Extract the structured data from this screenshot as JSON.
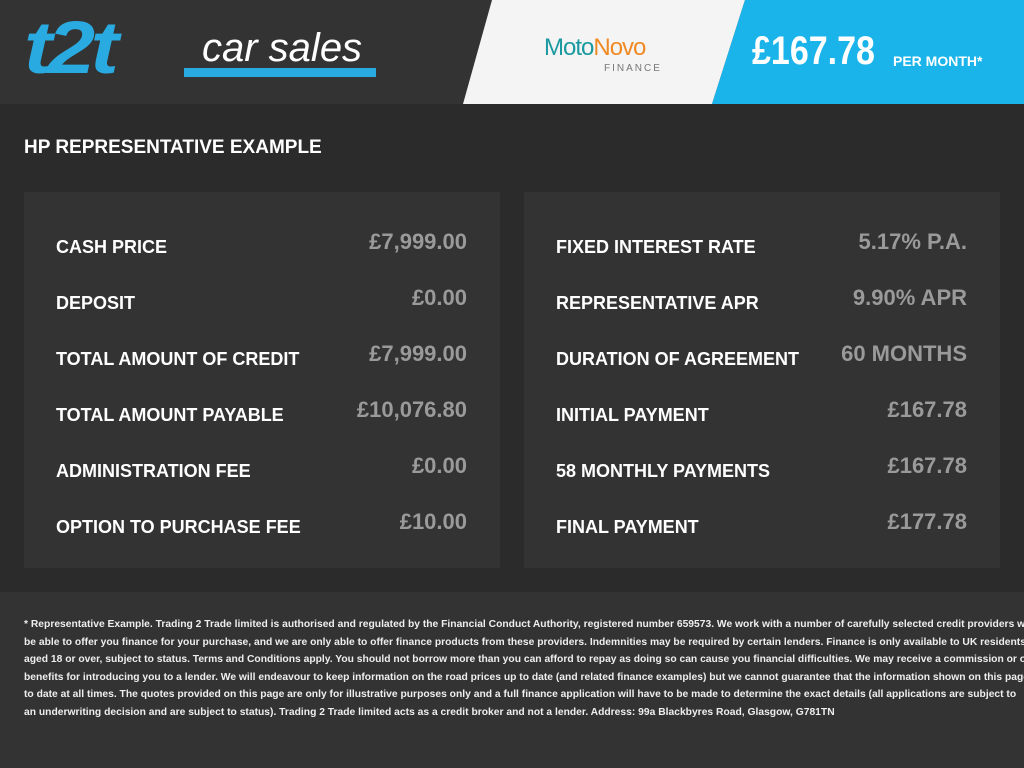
{
  "header": {
    "logo_main": "t2t",
    "logo_sub": "car sales",
    "partner_logo": {
      "moto": "Moto",
      "novo": "Novo",
      "sub": "FINANCE"
    },
    "monthly_price": "£167.78",
    "per_month": "PER MONTH*",
    "colors": {
      "brand_blue": "#1ab4ea",
      "moto_teal": "#1a9aa0",
      "novo_orange": "#f08a24"
    }
  },
  "section_title": "HP REPRESENTATIVE EXAMPLE",
  "left_panel": [
    {
      "label": "CASH PRICE",
      "value": "£7,999.00"
    },
    {
      "label": "DEPOSIT",
      "value": "£0.00"
    },
    {
      "label": "TOTAL AMOUNT OF CREDIT",
      "value": "£7,999.00"
    },
    {
      "label": "TOTAL AMOUNT PAYABLE",
      "value": "£10,076.80"
    },
    {
      "label": "ADMINISTRATION FEE",
      "value": "£0.00"
    },
    {
      "label": "OPTION TO PURCHASE FEE",
      "value": "£10.00"
    }
  ],
  "right_panel": [
    {
      "label": "FIXED INTEREST RATE",
      "value": "5.17% P.A."
    },
    {
      "label": "REPRESENTATIVE APR",
      "value": "9.90% APR"
    },
    {
      "label": "DURATION OF AGREEMENT",
      "value": "60 MONTHS"
    },
    {
      "label": "INITIAL PAYMENT",
      "value": "£167.78"
    },
    {
      "label": "58 MONTHLY PAYMENTS",
      "value": "£167.78"
    },
    {
      "label": "FINAL PAYMENT",
      "value": "£177.78"
    }
  ],
  "disclaimer_lines": [
    "* Representative Example. Trading 2 Trade limited is authorised and regulated by the Financial Conduct Authority, registered number 659573. We work with a number of carefully selected credit providers who may",
    "be able to offer you finance for your purchase, and we are only able to offer finance products from these providers. Indemnities may be required by certain lenders. Finance is only available to UK residents,",
    "aged 18 or over, subject to status. Terms and Conditions apply. You should not borrow more than you can afford to repay as doing so can cause you financial difficulties. We may receive a commission or other",
    "benefits for introducing you to a lender. We will endeavour to keep information on the road prices up to date (and related finance examples) but we cannot guarantee that the information shown on this page is up",
    "to date at all times. The quotes provided on this page are only for illustrative purposes only and a full finance application will have to be made to determine the exact details (all applications are subject to",
    "an underwriting decision and are subject to status). Trading 2 Trade limited acts as a credit broker and not a lender. Address: 99a Blackbyres Road, Glasgow, G781TN"
  ]
}
